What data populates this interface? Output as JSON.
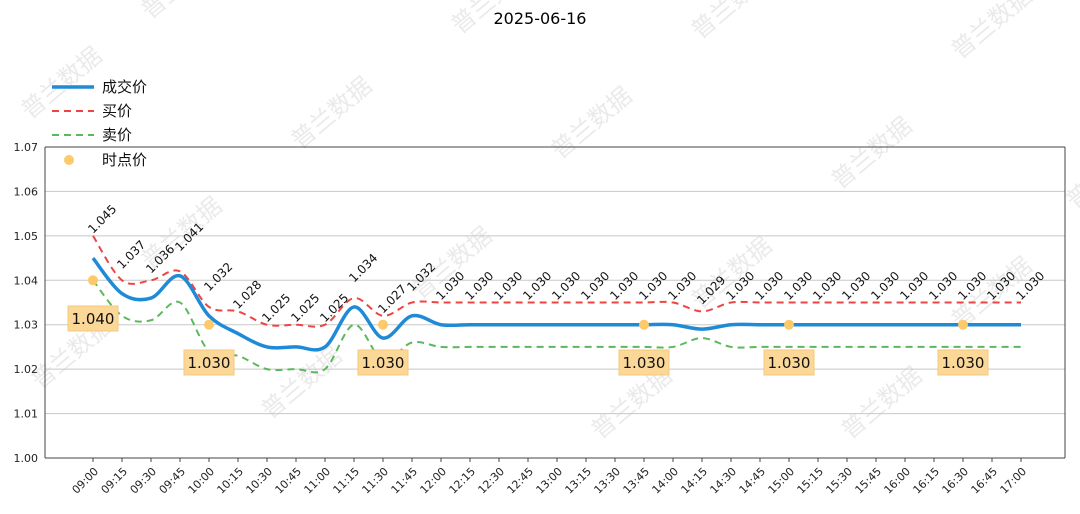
{
  "chart_data": {
    "type": "line",
    "title": "2025-06-16",
    "x": [
      "09:00",
      "09:15",
      "09:30",
      "09:45",
      "10:00",
      "10:15",
      "10:30",
      "10:45",
      "11:00",
      "11:15",
      "11:30",
      "11:45",
      "12:00",
      "12:15",
      "12:30",
      "12:45",
      "13:00",
      "13:15",
      "13:30",
      "13:45",
      "14:00",
      "14:15",
      "14:30",
      "14:45",
      "15:00",
      "15:15",
      "15:30",
      "15:45",
      "16:00",
      "16:15",
      "16:30",
      "16:45",
      "17:00"
    ],
    "ylim": [
      1.0,
      1.07
    ],
    "yticks": [
      "1.00",
      "1.01",
      "1.02",
      "1.03",
      "1.04",
      "1.05",
      "1.06",
      "1.07"
    ],
    "grid": "horizontal",
    "legend_position": "top-left",
    "series": [
      {
        "name": "成交价",
        "style": "solid",
        "color": "#1f8ad6",
        "values": [
          1.045,
          1.037,
          1.036,
          1.041,
          1.032,
          1.028,
          1.025,
          1.025,
          1.025,
          1.034,
          1.027,
          1.032,
          1.03,
          1.03,
          1.03,
          1.03,
          1.03,
          1.03,
          1.03,
          1.03,
          1.03,
          1.029,
          1.03,
          1.03,
          1.03,
          1.03,
          1.03,
          1.03,
          1.03,
          1.03,
          1.03,
          1.03,
          1.03
        ]
      },
      {
        "name": "买价",
        "style": "dashed",
        "color": "#ee4444",
        "values": [
          1.05,
          1.04,
          1.04,
          1.042,
          1.034,
          1.033,
          1.03,
          1.03,
          1.03,
          1.036,
          1.032,
          1.035,
          1.035,
          1.035,
          1.035,
          1.035,
          1.035,
          1.035,
          1.035,
          1.035,
          1.035,
          1.033,
          1.035,
          1.035,
          1.035,
          1.035,
          1.035,
          1.035,
          1.035,
          1.035,
          1.035,
          1.035,
          1.035
        ]
      },
      {
        "name": "卖价",
        "style": "dashed",
        "color": "#5cb85c",
        "values": [
          1.04,
          1.032,
          1.031,
          1.035,
          1.024,
          1.023,
          1.02,
          1.02,
          1.02,
          1.03,
          1.022,
          1.026,
          1.025,
          1.025,
          1.025,
          1.025,
          1.025,
          1.025,
          1.025,
          1.025,
          1.025,
          1.027,
          1.025,
          1.025,
          1.025,
          1.025,
          1.025,
          1.025,
          1.025,
          1.025,
          1.025,
          1.025,
          1.025
        ]
      },
      {
        "name": "时点价",
        "style": "points",
        "color": "#fcc96b",
        "points": [
          {
            "x": "09:00",
            "y": 1.04,
            "label": "1.040"
          },
          {
            "x": "10:00",
            "y": 1.03,
            "label": "1.030"
          },
          {
            "x": "11:30",
            "y": 1.03,
            "label": "1.030"
          },
          {
            "x": "13:45",
            "y": 1.03,
            "label": "1.030"
          },
          {
            "x": "15:00",
            "y": 1.03,
            "label": "1.030"
          },
          {
            "x": "16:30",
            "y": 1.03,
            "label": "1.030"
          }
        ]
      }
    ],
    "data_labels": [
      "1.045",
      "1.037",
      "1.036",
      "1.041",
      "1.032",
      "1.028",
      "1.025",
      "1.025",
      "1.025",
      "1.034",
      "1.027",
      "1.032",
      "1.030",
      "1.030",
      "1.030",
      "1.030",
      "1.030",
      "1.030",
      "1.030",
      "1.030",
      "1.030",
      "1.029",
      "1.030",
      "1.030",
      "1.030",
      "1.030",
      "1.030",
      "1.030",
      "1.030",
      "1.030",
      "1.030",
      "1.030",
      "1.030"
    ]
  },
  "watermark": "普兰数据"
}
